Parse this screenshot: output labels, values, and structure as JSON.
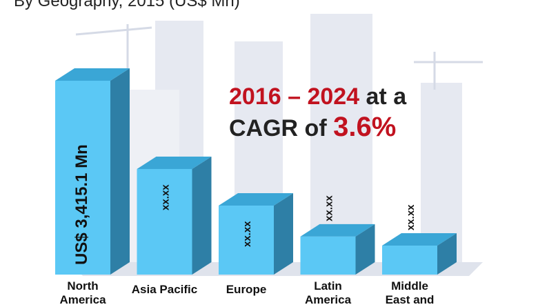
{
  "chart_data": {
    "type": "bar",
    "title": "By Geography, 2015 (US$ Mn)",
    "categories": [
      "North America",
      "Asia Pacific",
      "Europe",
      "Latin America",
      "Middle East and"
    ],
    "values": [
      3415.1,
      1860,
      1215,
      670,
      510
    ],
    "data_labels": [
      "US$ 3,415.1 Mn",
      "xx.xx",
      "xx.xx",
      "xx.xx",
      "xx.xx"
    ],
    "annotation": {
      "years": "2016 – 2024",
      "mid": " at a",
      "line2": "CAGR of ",
      "rate": "3.6%"
    },
    "ylim": [
      0,
      3500
    ],
    "grid": false,
    "colors": {
      "front": "#5bc8f5",
      "top": "#3aa6d6",
      "side": "#2e7fa6",
      "accent": "#c1121f",
      "background_buildings": "#e4e8f0"
    }
  }
}
